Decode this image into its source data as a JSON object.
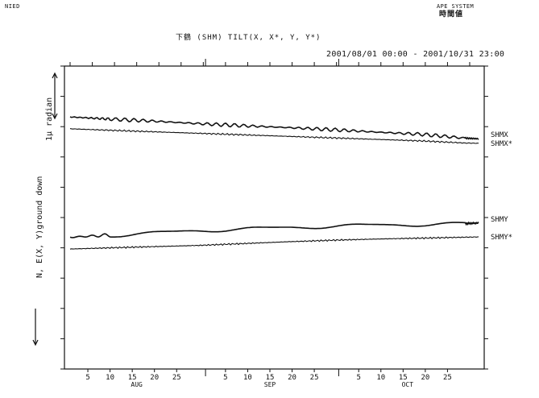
{
  "header": {
    "left": "NIED",
    "right_line1": "APE SYSTEM",
    "right_line2": "時間値"
  },
  "chart_title": "下鶴 (SHM) TILT(X, X*, Y, Y*)",
  "time_range": "2001/08/01 00:00 - 2001/10/31 23:00",
  "chart_data": {
    "type": "line",
    "title": "下鶴 (SHM) TILT(X, X*, Y, Y*)",
    "xlabel": "",
    "ylabel": "N, E(X, Y)ground down",
    "scale_label": "1μ radian",
    "x_ticks": [
      "5",
      "10",
      "15",
      "20",
      "25",
      "5",
      "10",
      "15",
      "20",
      "25",
      "5",
      "10",
      "15",
      "20",
      "25"
    ],
    "x_tick_days": [
      5,
      10,
      15,
      20,
      25,
      36,
      41,
      46,
      51,
      56,
      66,
      71,
      76,
      81,
      86
    ],
    "months": [
      "AUG",
      "SEP",
      "OCT"
    ],
    "month_day": [
      16,
      46,
      77
    ],
    "xlim": [
      1,
      93
    ],
    "ylim": [
      0,
      10
    ],
    "series": [
      {
        "name": "SHMX",
        "x": [
          1,
          10,
          20,
          30,
          40,
          50,
          60,
          70,
          80,
          90,
          93
        ],
        "y": [
          8.32,
          8.25,
          8.18,
          8.1,
          8.03,
          7.97,
          7.9,
          7.82,
          7.75,
          7.62,
          7.6
        ]
      },
      {
        "name": "SHMX*",
        "x": [
          1,
          10,
          20,
          30,
          40,
          50,
          60,
          70,
          80,
          90,
          93
        ],
        "y": [
          7.93,
          7.88,
          7.83,
          7.78,
          7.73,
          7.68,
          7.63,
          7.58,
          7.53,
          7.46,
          7.45
        ]
      },
      {
        "name": "SHMY",
        "x": [
          1,
          10,
          20,
          30,
          40,
          50,
          60,
          70,
          80,
          90,
          93
        ],
        "y": [
          4.35,
          4.42,
          4.5,
          4.58,
          4.63,
          4.68,
          4.72,
          4.76,
          4.78,
          4.8,
          4.82
        ]
      },
      {
        "name": "SHMY*",
        "x": [
          1,
          10,
          20,
          30,
          40,
          50,
          60,
          70,
          80,
          90,
          93
        ],
        "y": [
          3.96,
          4.0,
          4.04,
          4.08,
          4.14,
          4.2,
          4.25,
          4.29,
          4.32,
          4.35,
          4.36
        ]
      }
    ],
    "grid": false,
    "legend": "right, labels beside line ends"
  }
}
